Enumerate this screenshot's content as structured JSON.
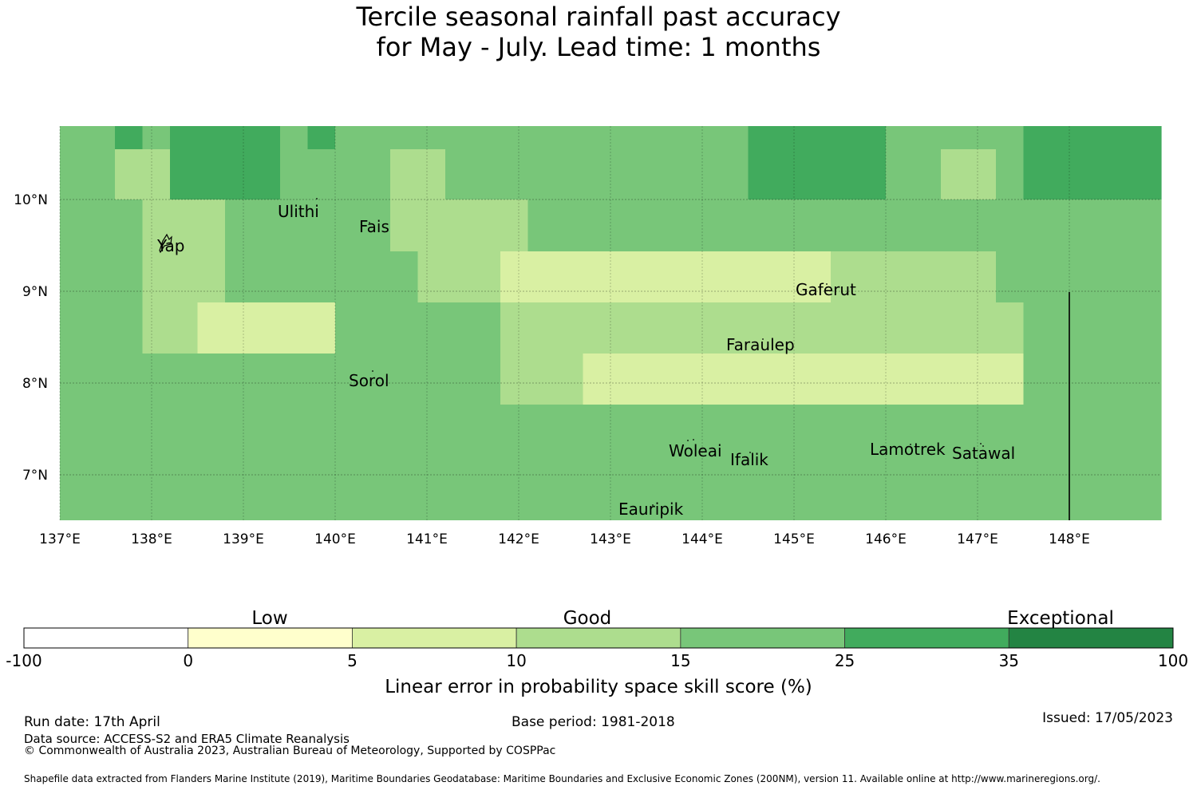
{
  "title": {
    "line1": "Tercile seasonal rainfall past accuracy",
    "line2": "for May - July. Lead time: 1 months"
  },
  "map": {
    "lon_labels": [
      "137°E",
      "138°E",
      "139°E",
      "140°E",
      "141°E",
      "142°E",
      "143°E",
      "144°E",
      "145°E",
      "146°E",
      "147°E",
      "148°E"
    ],
    "lat_labels": [
      "10°N",
      "9°N",
      "8°N",
      "7°N"
    ],
    "islands": [
      "Ulithi",
      "Yap",
      "Fais",
      "Sorol",
      "Gaferut",
      "Faraulep",
      "Woleai",
      "Ifalik",
      "Lamotrek",
      "Satawal",
      "Eauripik"
    ],
    "grid_colors_by_level": [
      "#ffffff",
      "#ffffcc",
      "#d9f0a3",
      "#addd8e",
      "#78c679",
      "#41ab5d",
      "#238443"
    ],
    "grid_levels": [
      [
        4,
        4,
        5,
        4,
        5,
        5,
        5,
        5,
        4,
        5,
        4,
        4,
        4,
        4,
        4,
        4,
        4,
        4,
        4,
        4,
        4,
        4,
        4,
        4,
        4,
        5,
        5,
        5,
        5,
        5,
        4,
        4,
        4,
        4,
        4,
        5,
        5,
        5,
        5,
        5
      ],
      [
        4,
        4,
        3,
        3,
        5,
        5,
        5,
        5,
        4,
        4,
        4,
        4,
        3,
        3,
        4,
        4,
        4,
        4,
        4,
        4,
        4,
        4,
        4,
        4,
        4,
        5,
        5,
        5,
        5,
        5,
        4,
        4,
        3,
        3,
        4,
        5,
        5,
        5,
        5,
        5
      ],
      [
        4,
        4,
        4,
        3,
        3,
        3,
        4,
        4,
        4,
        4,
        4,
        4,
        3,
        3,
        3,
        3,
        3,
        4,
        4,
        4,
        4,
        4,
        4,
        4,
        4,
        4,
        4,
        4,
        4,
        4,
        4,
        4,
        4,
        4,
        4,
        4,
        4,
        4,
        4,
        4
      ],
      [
        4,
        4,
        4,
        3,
        3,
        3,
        4,
        4,
        4,
        4,
        4,
        4,
        4,
        3,
        3,
        3,
        2,
        2,
        2,
        2,
        2,
        2,
        2,
        2,
        2,
        2,
        2,
        2,
        3,
        3,
        3,
        3,
        3,
        3,
        4,
        4,
        4,
        4,
        4,
        4
      ],
      [
        4,
        4,
        4,
        3,
        3,
        2,
        2,
        2,
        2,
        2,
        4,
        4,
        4,
        4,
        4,
        4,
        3,
        3,
        3,
        3,
        3,
        3,
        3,
        3,
        3,
        3,
        3,
        3,
        3,
        3,
        3,
        3,
        3,
        3,
        3,
        4,
        4,
        4,
        4,
        4
      ],
      [
        4,
        4,
        4,
        4,
        4,
        4,
        4,
        4,
        4,
        4,
        4,
        4,
        4,
        4,
        4,
        4,
        3,
        3,
        3,
        2,
        2,
        2,
        2,
        2,
        2,
        2,
        2,
        2,
        2,
        2,
        2,
        2,
        2,
        2,
        2,
        4,
        4,
        4,
        4,
        4
      ],
      [
        4,
        4,
        4,
        4,
        4,
        4,
        4,
        4,
        4,
        4,
        4,
        4,
        4,
        4,
        4,
        4,
        4,
        4,
        4,
        4,
        4,
        4,
        4,
        4,
        4,
        4,
        4,
        4,
        4,
        4,
        4,
        4,
        4,
        4,
        4,
        4,
        4,
        4,
        4,
        4
      ],
      [
        4,
        4,
        4,
        4,
        4,
        4,
        4,
        4,
        4,
        4,
        4,
        4,
        4,
        4,
        4,
        4,
        4,
        4,
        4,
        4,
        4,
        4,
        4,
        4,
        4,
        4,
        4,
        4,
        4,
        4,
        4,
        4,
        4,
        4,
        4,
        4,
        4,
        4,
        4,
        4
      ],
      [
        4,
        4,
        4,
        4,
        4,
        4,
        4,
        4,
        4,
        4,
        4,
        4,
        4,
        4,
        4,
        4,
        4,
        4,
        4,
        4,
        4,
        4,
        4,
        4,
        4,
        4,
        4,
        4,
        4,
        4,
        4,
        4,
        4,
        4,
        4,
        4,
        4,
        4,
        4,
        4
      ]
    ]
  },
  "colorbar": {
    "category_labels": [
      "Low",
      "Good",
      "Exceptional"
    ],
    "tick_labels": [
      "-100",
      "0",
      "5",
      "10",
      "15",
      "25",
      "35",
      "100"
    ],
    "colors": [
      "#ffffff",
      "#ffffcc",
      "#d9f0a3",
      "#addd8e",
      "#78c679",
      "#41ab5d",
      "#238443"
    ],
    "xlabel": "Linear error in probability space skill score (%)"
  },
  "footer": {
    "run_date": "Run date: 17th April",
    "base_period": "Base period: 1981-2018",
    "issued": "Issued: 17/05/2023",
    "data_source": "Data source: ACCESS-S2 and ERA5 Climate Reanalysis",
    "copyright": "© Commonwealth of Australia 2023, Australian Bureau of Meteorology, Supported by COSPPac",
    "shapefile": "Shapefile data extracted from Flanders Marine Institute (2019), Maritime Boundaries Geodatabase: Maritime Boundaries and Exclusive Economic Zones (200NM), version 11. Available online at http://www.marineregions.org/."
  }
}
